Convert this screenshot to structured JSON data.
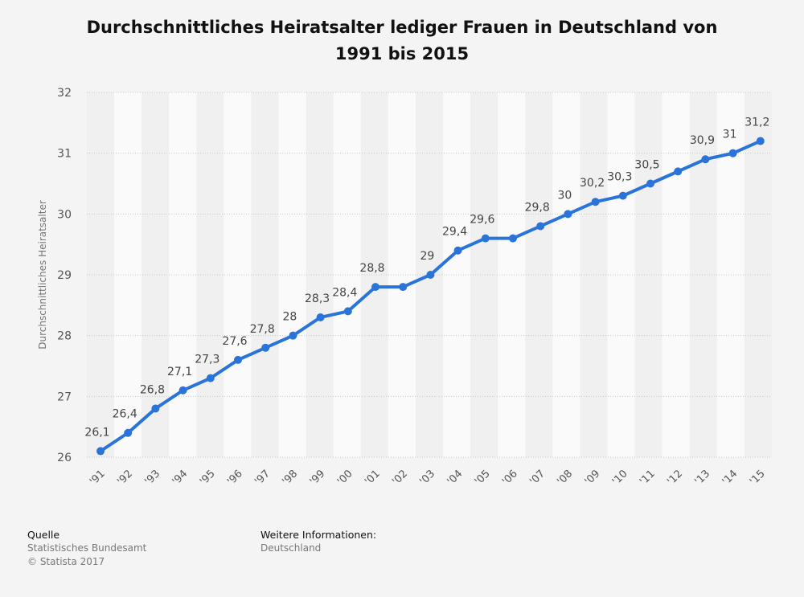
{
  "chart_data": {
    "type": "line",
    "title": "Durchschnittliches Heiratsalter lediger Frauen in Deutschland von 1991 bis 2015",
    "ylabel": "Durchschnittliches Heiratsalter",
    "xlabel": "",
    "ylim": [
      26,
      32
    ],
    "yticks": [
      "26",
      "27",
      "28",
      "29",
      "30",
      "31",
      "32"
    ],
    "grid": true,
    "categories": [
      "'91",
      "'92",
      "'93",
      "'94",
      "'95",
      "'96",
      "'97",
      "'98",
      "'99",
      "'00",
      "'01",
      "'02",
      "'03",
      "'04",
      "'05",
      "'06",
      "'07",
      "'08",
      "'09",
      "'10",
      "'11",
      "'12",
      "'13",
      "'14",
      "'15"
    ],
    "values": [
      26.1,
      26.4,
      26.8,
      27.1,
      27.3,
      27.6,
      27.8,
      28,
      28.3,
      28.4,
      28.8,
      28.8,
      29,
      29.4,
      29.6,
      29.6,
      29.8,
      30,
      30.2,
      30.3,
      30.5,
      30.7,
      30.9,
      31,
      31.2
    ],
    "data_labels": [
      "26,1",
      "26,4",
      "26,8",
      "27,1",
      "27,3",
      "27,6",
      "27,8",
      "28",
      "28,3",
      "28,4",
      "28,8",
      "",
      "29",
      "29,4",
      "29,6",
      "",
      "29,8",
      "30",
      "30,2",
      "30,3",
      "30,5",
      "",
      "30,9",
      "31",
      "31,2"
    ],
    "line_color": "#2a74d9"
  },
  "footer": {
    "source_heading": "Quelle",
    "source_lines": [
      "Statistisches Bundesamt",
      "© Statista 2017"
    ],
    "info_heading": "Weitere Informationen:",
    "info_lines": [
      "Deutschland"
    ]
  }
}
